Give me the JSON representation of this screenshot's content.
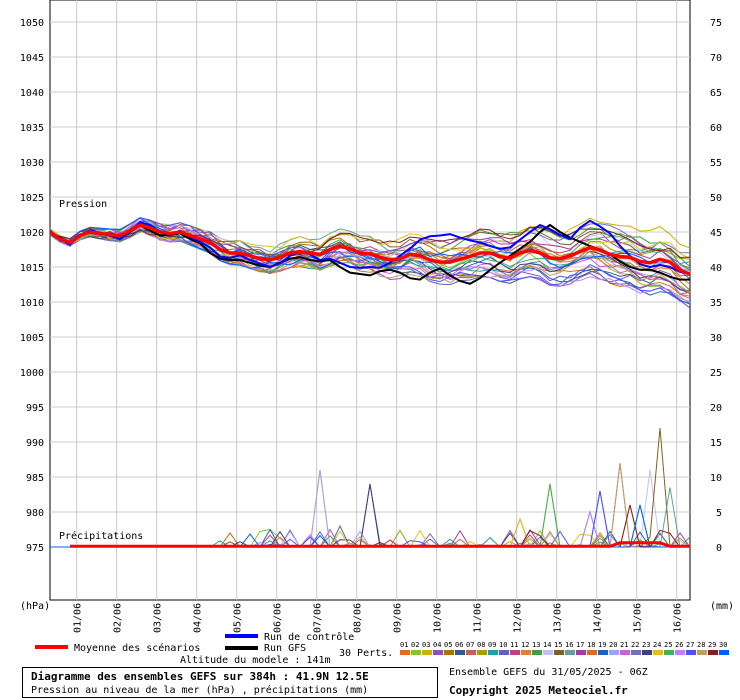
{
  "chart_data": {
    "type": "line",
    "title": "Diagramme des ensembles GEFS sur 384h : 41.9N 12.5E",
    "subtitle": "Pression au niveau de la mer (hPa) , précipitations (mm)",
    "left_axis": {
      "unit": "(hPa)",
      "ticks": [
        1050,
        1045,
        1040,
        1035,
        1030,
        1025,
        1020,
        1015,
        1010,
        1005,
        1000,
        995,
        990,
        985,
        980,
        975
      ],
      "range": [
        975,
        1050
      ]
    },
    "right_axis": {
      "unit": "(mm)",
      "ticks": [
        75,
        70,
        65,
        60,
        55,
        50,
        45,
        40,
        35,
        30,
        25,
        20,
        15,
        10,
        5,
        0
      ],
      "precip_zero_at_hpa": 975,
      "mm_per_hpa_step": 1
    },
    "x_axis": {
      "labels": [
        "01/06",
        "02/06",
        "03/06",
        "04/06",
        "05/06",
        "06/06",
        "07/06",
        "08/06",
        "09/06",
        "10/06",
        "11/06",
        "12/06",
        "13/06",
        "14/06",
        "15/06",
        "16/06"
      ],
      "range_hours": [
        0,
        384
      ],
      "step_hours": 6
    },
    "section_labels": {
      "pressure": "Pression",
      "precip": "Précipitations"
    },
    "series": [
      {
        "name": "Moyenne des scénarios",
        "color": "#ff0000",
        "kind": "mean",
        "pressure": [
          1020.0,
          1019.0,
          1018.5,
          1019.5,
          1020.0,
          1019.8,
          1019.6,
          1019.5,
          1020.2,
          1021.0,
          1020.6,
          1020.0,
          1019.8,
          1020.0,
          1019.5,
          1019.0,
          1018.5,
          1017.5,
          1017.0,
          1017.0,
          1016.6,
          1016.2,
          1016.0,
          1016.4,
          1017.0,
          1017.2,
          1017.0,
          1016.8,
          1017.5,
          1018.0,
          1017.6,
          1017.0,
          1016.9,
          1016.4,
          1016.0,
          1016.2,
          1016.8,
          1016.6,
          1016.0,
          1015.7,
          1015.7,
          1016.1,
          1016.5,
          1017.0,
          1017.0,
          1016.5,
          1016.3,
          1017.0,
          1017.4,
          1017.0,
          1016.3,
          1016.2,
          1016.6,
          1017.2,
          1017.8,
          1017.4,
          1016.8,
          1016.5,
          1016.4,
          1015.8,
          1015.6,
          1016.1,
          1015.7,
          1014.5,
          1014.0,
          1014.6,
          1014.6,
          1014.2,
          1013.9,
          1014.3,
          1014.8,
          1014.5,
          1014.0,
          1013.7,
          1014.0,
          1014.5,
          1014.4,
          1014.6,
          1015.0,
          1015.4,
          1015.0,
          1015.3,
          1016.0,
          1016.2,
          1015.8,
          1015.7,
          1015.9,
          1016.0,
          1016.2,
          1016.5,
          1016.8,
          1017.0,
          1017.2,
          1017.1,
          1017.0,
          1016.9,
          1016.8,
          1016.7,
          1016.6,
          1016.5,
          1016.4,
          1016.3,
          1016.2,
          1016.1,
          1016.0,
          1015.9,
          1015.8,
          1015.7,
          1015.6,
          1015.5,
          1015.4,
          1015.3,
          1015.2,
          1015.1,
          1015.0,
          1014.9,
          1014.8,
          1014.7,
          1014.6,
          1014.5,
          1014.4,
          1014.3,
          1014.2,
          1014.1,
          1014.0,
          1013.9,
          1013.8,
          1013.7,
          1013.6,
          1013.5,
          1013.4,
          1013.3,
          1013.2,
          1013.1,
          1013.0,
          1012.9,
          1012.8,
          1012.7,
          1012.6,
          1012.5,
          1012.4,
          1012.3,
          1012.2,
          1012.1,
          1012.0,
          1011.9,
          1011.8,
          1011.7,
          1011.6,
          1011.5,
          1011.4,
          1011.3,
          1011.2,
          1011.1,
          1011.0,
          1010.9,
          1010.8,
          1010.7,
          1010.6,
          1010.5,
          1010.4,
          1010.3,
          1010.2,
          1010.1,
          1010.0
        ]
      },
      {
        "name": "Run de contrôle",
        "color": "#0000ff",
        "kind": "control",
        "pressure": [
          1020.0,
          1019.0,
          1018.2,
          1019.6,
          1020.2,
          1019.9,
          1019.5,
          1019.0,
          1020.0,
          1021.4,
          1021.0,
          1020.0,
          1019.6,
          1020.2,
          1019.3,
          1018.6,
          1017.8,
          1016.5,
          1016.3,
          1016.7,
          1016.0,
          1015.5,
          1015.0,
          1015.5,
          1016.6,
          1017.2,
          1016.8,
          1016.0,
          1016.2,
          1015.6,
          1015.0,
          1014.9,
          1015.0,
          1014.9,
          1015.6,
          1016.6,
          1017.6,
          1018.9,
          1019.4,
          1019.5,
          1019.7,
          1019.2,
          1018.8,
          1018.5,
          1018.0,
          1017.6,
          1017.8,
          1018.9,
          1020.0,
          1021.0,
          1020.4,
          1019.6,
          1019.0,
          1020.6,
          1021.6,
          1020.8,
          1019.8,
          1018.0,
          1016.6,
          1015.4,
          1015.0,
          1015.3,
          1015.0,
          1014.3,
          1014.0,
          1013.8,
          1013.6,
          1013.6,
          1013.4,
          1013.6,
          1014.2,
          1014.0,
          1013.5,
          1013.6,
          1014.4,
          1015.4,
          1014.8,
          1014.2,
          1014.6,
          1015.2,
          1015.0,
          1015.4,
          1016.0,
          1016.6,
          1016.4,
          1016.0
        ]
      },
      {
        "name": "Run GFS",
        "color": "#000000",
        "kind": "gfs",
        "pressure": [
          1020.0,
          1019.2,
          1018.4,
          1019.4,
          1020.0,
          1019.8,
          1019.5,
          1019.0,
          1020.0,
          1021.0,
          1020.2,
          1019.5,
          1019.6,
          1019.8,
          1019.0,
          1018.4,
          1017.0,
          1016.2,
          1016.0,
          1016.0,
          1015.6,
          1015.2,
          1015.0,
          1015.6,
          1016.2,
          1016.4,
          1016.0,
          1015.8,
          1016.0,
          1015.0,
          1014.2,
          1014.0,
          1013.8,
          1014.4,
          1014.6,
          1014.2,
          1013.4,
          1013.2,
          1014.2,
          1014.8,
          1013.8,
          1013.0,
          1012.6,
          1013.4,
          1014.6,
          1015.6,
          1016.6,
          1017.6,
          1018.6,
          1020.0,
          1021.0,
          1020.0,
          1019.2,
          1018.6,
          1018.0,
          1017.5,
          1016.8,
          1015.8,
          1015.0,
          1014.6,
          1014.6,
          1014.2,
          1013.6,
          1013.2,
          1013.2,
          1013.0,
          1013.0,
          1012.8,
          1013.0,
          1013.4,
          1013.8,
          1014.0,
          1014.0,
          1013.6,
          1013.2,
          1013.6,
          1014.2,
          1014.4,
          1014.2,
          1014.0,
          1013.8,
          1013.8,
          1013.6,
          1013.6,
          1013.4,
          1013.6
        ]
      }
    ],
    "precip_highlights": [
      {
        "hour": 108,
        "mm": 2.0
      },
      {
        "hour": 132,
        "mm": 2.5
      },
      {
        "hour": 162,
        "mm": 11.0
      },
      {
        "hour": 168,
        "mm": 2.5
      },
      {
        "hour": 174,
        "mm": 3.0
      },
      {
        "hour": 192,
        "mm": 9.0
      },
      {
        "hour": 282,
        "mm": 4.0
      },
      {
        "hour": 300,
        "mm": 9.0
      },
      {
        "hour": 324,
        "mm": 5.0
      },
      {
        "hour": 330,
        "mm": 8.0
      },
      {
        "hour": 342,
        "mm": 12.0
      },
      {
        "hour": 348,
        "mm": 6.0
      },
      {
        "hour": 354,
        "mm": 6.0
      },
      {
        "hour": 360,
        "mm": 11.0
      },
      {
        "hour": 366,
        "mm": 17.0
      },
      {
        "hour": 372,
        "mm": 8.5
      },
      {
        "hour": 378,
        "mm": 2.0
      }
    ],
    "legend": {
      "mean_label": "Moyenne des scénarios",
      "control_label": "Run de contrôle",
      "gfs_label": "Run GFS",
      "perts_label": "30 Perts.",
      "pert_numbers": [
        "01",
        "02",
        "03",
        "04",
        "05",
        "06",
        "07",
        "08",
        "09",
        "10",
        "11",
        "12",
        "13",
        "14",
        "15",
        "16",
        "17",
        "18",
        "19",
        "20",
        "21",
        "22",
        "23",
        "24",
        "25",
        "26",
        "27",
        "28",
        "29",
        "30"
      ],
      "pert_colors": [
        "#e07020",
        "#90c030",
        "#d0b000",
        "#9050c0",
        "#b07000",
        "#306080",
        "#c06060",
        "#a0a000",
        "#20a0a0",
        "#6060c0",
        "#c04080",
        "#e08030",
        "#40a040",
        "#c0c0ff",
        "#806020",
        "#60a0a0",
        "#a040a0",
        "#d07030",
        "#2060c0",
        "#a0a0ff",
        "#d060d0",
        "#7070c0",
        "#404080",
        "#e0c020",
        "#40b060",
        "#c080ff",
        "#5050ff",
        "#c0a060",
        "#802020",
        "#0060ff"
      ]
    },
    "grid": true
  },
  "altitude_label": "Altitude du modele : 141m",
  "ensemble_label": "Ensemble GEFS du 31/05/2025 - 06Z",
  "copyright": "Copyright 2025 Meteociel.fr"
}
